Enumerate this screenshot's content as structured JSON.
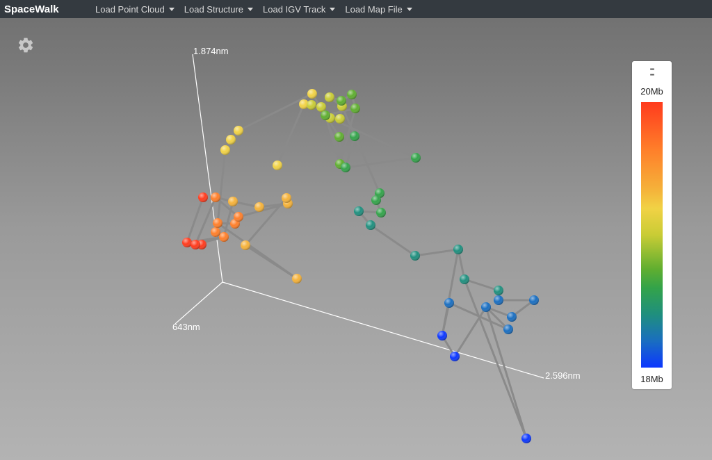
{
  "navbar": {
    "brand": "SpaceWalk",
    "menus": [
      {
        "label": "Load Point Cloud"
      },
      {
        "label": "Load Structure"
      },
      {
        "label": "Load IGV Track"
      },
      {
        "label": "Load Map File"
      }
    ]
  },
  "icons": {
    "settings": "gear-icon",
    "legend_handle": "drag-handle-icon"
  },
  "axes": {
    "vertical_label": "1.874nm",
    "depth_label": "643nm",
    "horizontal_label": "2.596nm"
  },
  "legend": {
    "max_label": "20Mb",
    "min_label": "18Mb",
    "colors": [
      "#ff3b1d",
      "#ff7f2a",
      "#f5b23a",
      "#f1d245",
      "#c9cc35",
      "#5fae30",
      "#33a34a",
      "#1f8f7e",
      "#1a6ec0",
      "#0c37ff"
    ]
  },
  "colors": {
    "navbar_bg": "#343a40",
    "tube": "#8a8a8a",
    "axis": "#ffffff"
  }
}
